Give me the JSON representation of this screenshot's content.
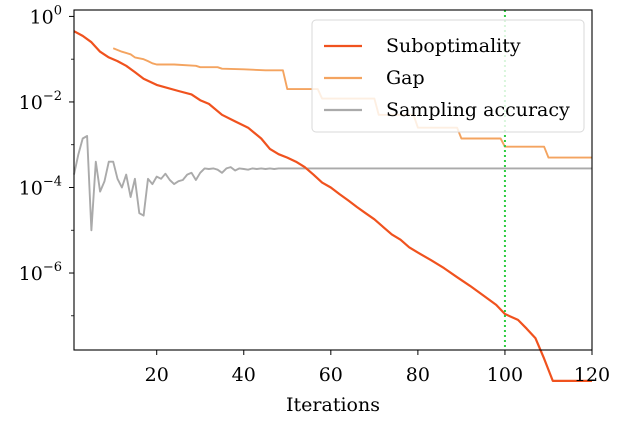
{
  "chart_data": {
    "type": "line",
    "title": "",
    "xlabel": "Iterations",
    "ylabel": "",
    "yscale": "log",
    "xlim": [
      1,
      120
    ],
    "ylim_exp": [
      -7.8,
      0.15
    ],
    "xticks": [
      20,
      40,
      60,
      80,
      100,
      120
    ],
    "xtick_labels": [
      "20",
      "40",
      "60",
      "80",
      "100",
      "120"
    ],
    "yticks": [
      {
        "exp": 0,
        "base": "10",
        "sup": "0"
      },
      {
        "exp": -2,
        "base": "10",
        "sup": "−2"
      },
      {
        "exp": -4,
        "base": "10",
        "sup": "−4"
      },
      {
        "exp": -6,
        "base": "10",
        "sup": "−6"
      }
    ],
    "vline": {
      "x": 100,
      "color": "#2ecc40",
      "style": "dotted"
    },
    "legend_position": "top-right",
    "series": [
      {
        "name": "Suboptimality",
        "color": "#f0521e",
        "x": [
          1,
          3,
          5,
          7,
          9,
          11,
          13,
          15,
          17,
          20,
          25,
          28,
          30,
          32,
          35,
          38,
          41,
          44,
          46,
          48,
          50,
          52,
          54,
          56,
          58,
          60,
          62,
          64,
          66,
          68,
          70,
          72,
          74,
          76,
          78,
          80,
          83,
          86,
          89,
          92,
          95,
          98,
          100,
          103,
          105,
          107,
          109,
          111,
          115,
          120
        ],
        "values": [
          0.45,
          0.35,
          0.25,
          0.15,
          0.11,
          0.09,
          0.07,
          0.05,
          0.035,
          0.025,
          0.018,
          0.015,
          0.011,
          0.009,
          0.005,
          0.0035,
          0.0025,
          0.0014,
          0.0008,
          0.0006,
          0.0005,
          0.0004,
          0.0003,
          0.0002,
          0.00013,
          0.0001,
          7e-05,
          5e-05,
          3.5e-05,
          2.5e-05,
          1.8e-05,
          1.2e-05,
          8e-06,
          6e-06,
          4e-06,
          3e-06,
          2e-06,
          1.3e-06,
          8e-07,
          5e-07,
          3e-07,
          1.8e-07,
          1.1e-07,
          8e-08,
          5e-08,
          3e-08,
          1e-08,
          3e-09,
          3e-09,
          3e-09
        ]
      },
      {
        "name": "Gap",
        "color": "#f4a460",
        "x": [
          10,
          12,
          14,
          15,
          17,
          18,
          19,
          20,
          24,
          29,
          30,
          34,
          35,
          40,
          45,
          48,
          49,
          50,
          57,
          58,
          70,
          71,
          79,
          80,
          89,
          90,
          99,
          100,
          109,
          110,
          120
        ],
        "values": [
          0.18,
          0.15,
          0.13,
          0.11,
          0.1,
          0.09,
          0.08,
          0.075,
          0.075,
          0.07,
          0.065,
          0.065,
          0.06,
          0.058,
          0.055,
          0.055,
          0.055,
          0.02,
          0.02,
          0.012,
          0.012,
          0.005,
          0.005,
          0.0025,
          0.0025,
          0.0014,
          0.0014,
          0.0009,
          0.0009,
          0.0005,
          0.0005
        ]
      },
      {
        "name": "Sampling accuracy",
        "color": "#aaaaaa",
        "x": [
          1,
          2,
          3,
          4,
          5,
          6,
          7,
          8,
          9,
          10,
          11,
          12,
          13,
          14,
          15,
          16,
          17,
          18,
          19,
          20,
          21,
          22,
          23,
          24,
          25,
          26,
          27,
          28,
          29,
          30,
          31,
          32,
          33,
          34,
          35,
          36,
          37,
          38,
          39,
          40,
          41,
          42,
          43,
          44,
          45,
          46,
          47,
          48,
          49,
          50,
          55,
          60,
          70,
          80,
          90,
          100,
          110,
          120
        ],
        "values": [
          0.0002,
          0.0006,
          0.0014,
          0.0016,
          1e-05,
          0.0004,
          8e-05,
          0.00014,
          0.0004,
          0.0004,
          0.00016,
          0.0001,
          0.0002,
          6e-05,
          0.00016,
          2.5e-05,
          2.2e-05,
          0.00016,
          0.00012,
          0.00018,
          0.00016,
          0.00021,
          0.00015,
          0.00012,
          0.00014,
          0.00015,
          0.0002,
          0.00022,
          0.00015,
          0.00022,
          0.00028,
          0.00027,
          0.00028,
          0.00026,
          0.00022,
          0.00028,
          0.0003,
          0.00025,
          0.00028,
          0.00027,
          0.00026,
          0.00028,
          0.00027,
          0.00028,
          0.00027,
          0.00028,
          0.00027,
          0.00028,
          0.00028,
          0.00028,
          0.00028,
          0.00028,
          0.00028,
          0.00028,
          0.00028,
          0.00028,
          0.00028,
          0.00028
        ]
      }
    ]
  }
}
